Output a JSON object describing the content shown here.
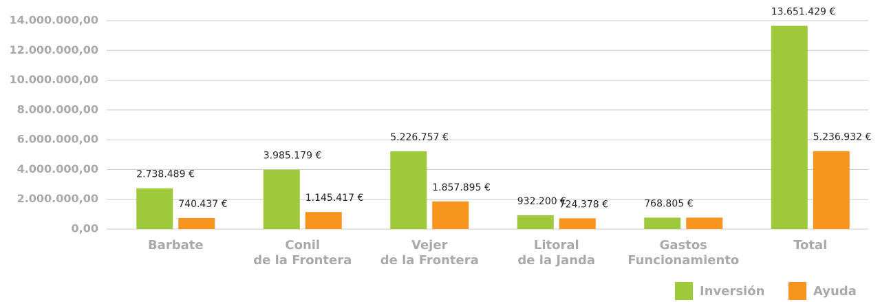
{
  "chart_data": {
    "type": "bar",
    "categories": [
      "Barbate",
      "Conil\nde la Frontera",
      "Vejer\nde la Frontera",
      "Litoral\nde la Janda",
      "Gastos\nFuncionamiento",
      "Total"
    ],
    "series": [
      {
        "name": "Inversión",
        "color": "#9dc93b",
        "values": [
          2738489,
          3985179,
          5226757,
          932200,
          768805,
          13651429
        ],
        "value_labels": [
          "2.738.489 €",
          "3.985.179 €",
          "5.226.757 €",
          "932.200 €",
          "768.805 €",
          "13.651.429 €"
        ]
      },
      {
        "name": "Ayuda",
        "color": "#f7941d",
        "values": [
          740437,
          1145417,
          1857895,
          724378,
          768805,
          5236932
        ],
        "value_labels": [
          "740.437 €",
          "1.145.417 €",
          "1.857.895 €",
          "724.378 €",
          null,
          "5.236.932 €"
        ]
      }
    ],
    "ylim": [
      0,
      14000000
    ],
    "yticks": [
      {
        "value": 0,
        "label": "0,00"
      },
      {
        "value": 2000000,
        "label": "2.000.000,00"
      },
      {
        "value": 4000000,
        "label": "4.000.000,00"
      },
      {
        "value": 6000000,
        "label": "6.000.000,00"
      },
      {
        "value": 8000000,
        "label": "8.000.000,00"
      },
      {
        "value": 10000000,
        "label": "10.000.000,00"
      },
      {
        "value": 12000000,
        "label": "12.000.000,00"
      },
      {
        "value": 14000000,
        "label": "14.000.000,00"
      }
    ],
    "grid": true,
    "legend": "bottom-right"
  }
}
